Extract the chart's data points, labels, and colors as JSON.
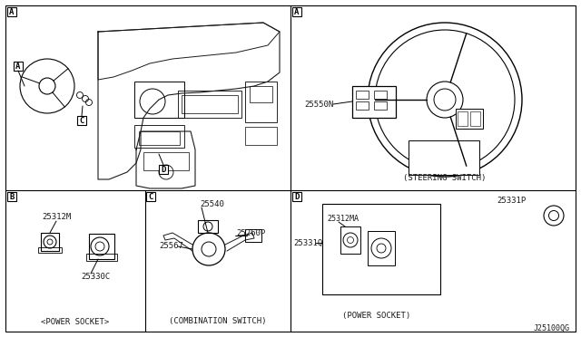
{
  "bg_color": "#ffffff",
  "line_color": "#1a1a1a",
  "label_A": "A",
  "label_B": "B",
  "label_C": "C",
  "label_D": "D",
  "part_25550N": "25550N",
  "part_25312M": "25312M",
  "part_25330C": "25330C",
  "part_25540": "25540",
  "part_25260P": "25260P",
  "part_25567": "25567",
  "part_25331P": "25331P",
  "part_25312MA": "25312MA",
  "part_25331Q": "25331Q",
  "caption_steering": "(STEERING SWITCH)",
  "caption_power_b": "<POWER SOCKET>",
  "caption_combo": "(COMBINATION SWITCH)",
  "caption_power_d": "(POWER SOCKET)",
  "footer": "J25100QG"
}
